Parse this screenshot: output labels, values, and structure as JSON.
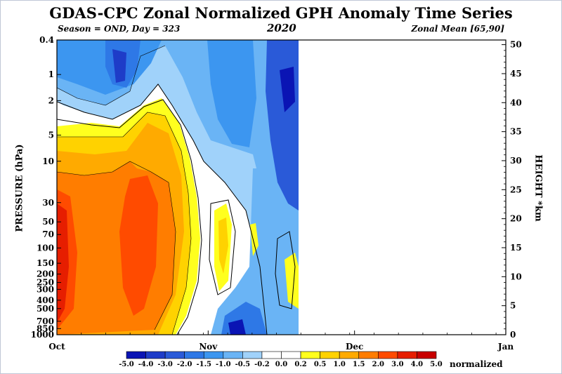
{
  "chart_data": {
    "type": "heatmap",
    "title": "GDAS-CPC Zonal Normalized GPH Anomaly Time Series",
    "subtitle_left": "Season = OND, Day = 323",
    "subtitle_center": "2020",
    "subtitle_right": "Zonal Mean [65,90]",
    "ylabel_left": "PRESSURE (hPa)",
    "ylabel_right": "HEIGHT *km",
    "x_ticks": [
      "Oct",
      "Nov",
      "Dec",
      "Jan"
    ],
    "pressure_ticks": [
      "0.4",
      "1",
      "2",
      "5",
      "10",
      "30",
      "50",
      "70",
      "100",
      "150",
      "200",
      "250",
      "300",
      "400",
      "500",
      "700",
      "850",
      "1000"
    ],
    "height_ticks": [
      "0",
      "5",
      "10",
      "15",
      "20",
      "25",
      "30",
      "35",
      "40",
      "45",
      "50"
    ],
    "colorbar_labels": [
      "-5.0",
      "-4.0",
      "-3.0",
      "-2.0",
      "-1.5",
      "-1.0",
      "-0.5",
      "-0.2",
      "0.0",
      "0.2",
      "0.5",
      "1.0",
      "1.5",
      "2.0",
      "3.0",
      "4.0",
      "5.0"
    ],
    "colorbar_unit": "normalized",
    "colorbar_colors": [
      "#0a14b4",
      "#1e3cc8",
      "#2a5ad8",
      "#2e78e6",
      "#3c96f0",
      "#6ab4f5",
      "#a0d2fa",
      "#ffffff",
      "#ffffff",
      "#ffff1e",
      "#ffd200",
      "#ffaa00",
      "#ff7d00",
      "#ff4b00",
      "#e61e00",
      "#c80000"
    ]
  }
}
